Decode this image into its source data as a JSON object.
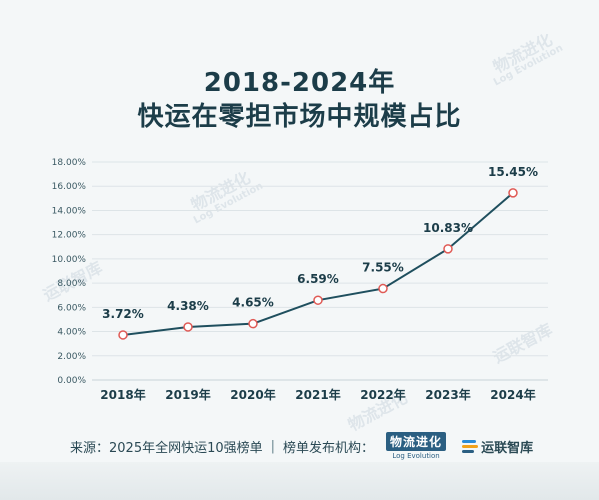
{
  "title_line1": "2018-2024年",
  "title_line2": "快运在零担市场中规模占比",
  "chart_data": {
    "type": "line",
    "title": "2018-2024年 快运在零担市场中规模占比",
    "categories": [
      "2018年",
      "2019年",
      "2020年",
      "2021年",
      "2022年",
      "2023年",
      "2024年"
    ],
    "values": [
      3.72,
      4.38,
      4.65,
      6.59,
      7.55,
      10.83,
      15.45
    ],
    "data_labels": [
      "3.72%",
      "4.38%",
      "4.65%",
      "6.59%",
      "7.55%",
      "10.83%",
      "15.45%"
    ],
    "y_ticks": [
      "0.00%",
      "2.00%",
      "4.00%",
      "6.00%",
      "8.00%",
      "10.00%",
      "12.00%",
      "14.00%",
      "16.00%",
      "18.00%"
    ],
    "ylim": [
      0,
      18
    ],
    "grid": true,
    "line_color": "#1f4f5e",
    "marker_color": "#e05a55"
  },
  "footer": {
    "source_label": "来源：2025年全网快运10强榜单",
    "separator": "|",
    "publisher_label": "榜单发布机构：",
    "logo1_main": "物流进化",
    "logo1_sub": "Log Evolution",
    "logo2": "运联智库"
  },
  "watermarks": [
    "物流进化",
    "Log Evolution",
    "运联智库"
  ]
}
